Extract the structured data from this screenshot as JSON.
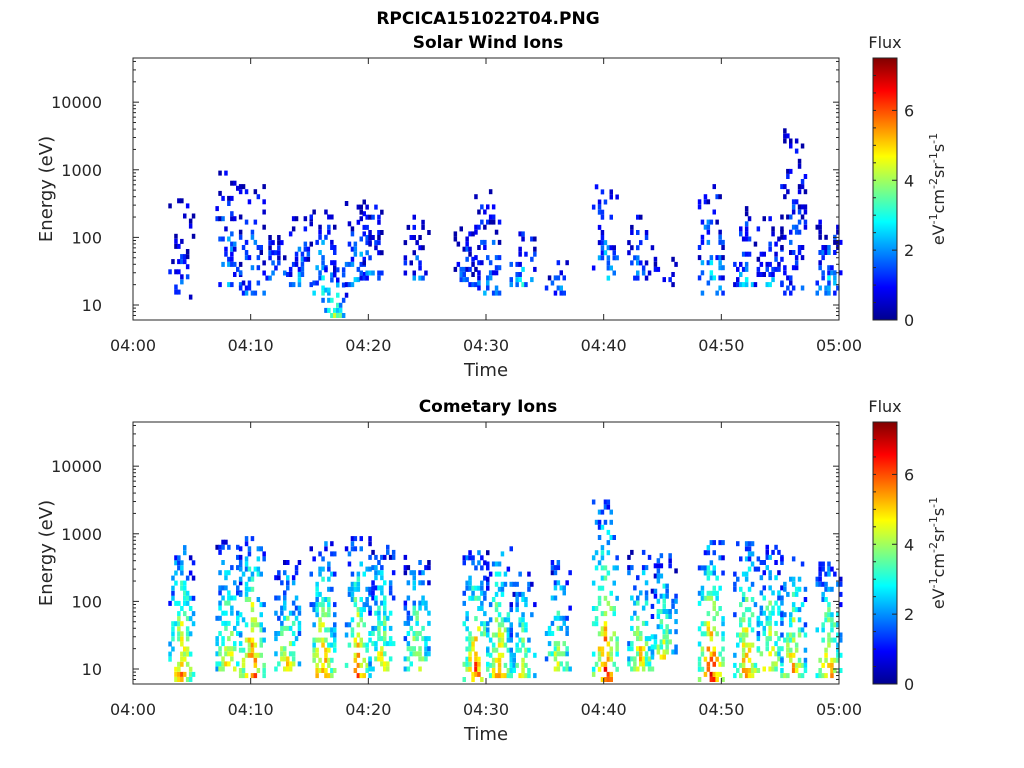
{
  "figure_title": "RPCICA151022T04.PNG",
  "colorbar": {
    "label": "Flux",
    "units": "eV⁻¹cm⁻²sr⁻¹s⁻¹",
    "units_parts": [
      "eV",
      "-1",
      "cm",
      "-2",
      "sr",
      "-1",
      "s",
      "-1"
    ],
    "ticks": [
      "0",
      "2",
      "4",
      "6"
    ],
    "range": [
      0,
      7.5
    ],
    "colormap": "jet"
  },
  "chart_data": [
    {
      "type": "heatmap",
      "title": "Solar Wind Ions",
      "xlabel": "Time",
      "ylabel": "Energy (eV)",
      "x_ticks": [
        "04:00",
        "04:10",
        "04:20",
        "04:30",
        "04:40",
        "04:50",
        "05:00"
      ],
      "y_ticks": [
        "10",
        "100",
        "1000",
        "10000"
      ],
      "y_scale": "log",
      "xlim": [
        "04:00",
        "05:00"
      ],
      "ylim": [
        6,
        45000
      ],
      "value_range": [
        0,
        7.5
      ],
      "bursts": [
        {
          "t": "04:04",
          "lo": 11,
          "hi": 400,
          "level": 1.4,
          "spread": 1
        },
        {
          "t": "04:08",
          "lo": 20,
          "hi": 1000,
          "level": 2.2,
          "spread": 1
        },
        {
          "t": "04:10",
          "lo": 15,
          "hi": 600,
          "level": 2.0,
          "spread": 1
        },
        {
          "t": "04:12",
          "lo": 25,
          "hi": 100,
          "level": 2.2,
          "spread": 1
        },
        {
          "t": "04:14",
          "lo": 20,
          "hi": 200,
          "level": 2.0,
          "spread": 1
        },
        {
          "t": "04:16",
          "lo": 15,
          "hi": 250,
          "level": 2.8,
          "spread": 1
        },
        {
          "t": "04:17",
          "lo": 7,
          "hi": 40,
          "level": 3.8,
          "spread": 0
        },
        {
          "t": "04:19",
          "lo": 20,
          "hi": 350,
          "level": 2.4,
          "spread": 1
        },
        {
          "t": "04:20",
          "lo": 25,
          "hi": 350,
          "level": 1.8,
          "spread": 1
        },
        {
          "t": "04:24",
          "lo": 25,
          "hi": 200,
          "level": 1.6,
          "spread": 1
        },
        {
          "t": "04:28",
          "lo": 20,
          "hi": 250,
          "level": 1.6,
          "spread": 1
        },
        {
          "t": "04:30",
          "lo": 15,
          "hi": 500,
          "level": 2.2,
          "spread": 1
        },
        {
          "t": "04:33",
          "lo": 20,
          "hi": 120,
          "level": 2.4,
          "spread": 1
        },
        {
          "t": "04:36",
          "lo": 15,
          "hi": 50,
          "level": 1.8,
          "spread": 1
        },
        {
          "t": "04:40",
          "lo": 25,
          "hi": 700,
          "level": 2.2,
          "spread": 1
        },
        {
          "t": "04:43",
          "lo": 25,
          "hi": 200,
          "level": 1.8,
          "spread": 1
        },
        {
          "t": "04:45",
          "lo": 20,
          "hi": 50,
          "level": 1.6,
          "spread": 1
        },
        {
          "t": "04:49",
          "lo": 15,
          "hi": 600,
          "level": 2.8,
          "spread": 1
        },
        {
          "t": "04:52",
          "lo": 20,
          "hi": 300,
          "level": 2.2,
          "spread": 1
        },
        {
          "t": "04:54",
          "lo": 20,
          "hi": 200,
          "level": 2.0,
          "spread": 1
        },
        {
          "t": "04:56",
          "lo": 15,
          "hi": 4000,
          "level": 1.6,
          "spread": 1
        },
        {
          "t": "04:59",
          "lo": 15,
          "hi": 200,
          "level": 2.4,
          "spread": 1
        }
      ]
    },
    {
      "type": "heatmap",
      "title": "Cometary Ions",
      "xlabel": "Time",
      "ylabel": "Energy (eV)",
      "x_ticks": [
        "04:00",
        "04:10",
        "04:20",
        "04:30",
        "04:40",
        "04:50",
        "05:00"
      ],
      "y_ticks": [
        "10",
        "100",
        "1000",
        "10000"
      ],
      "y_scale": "log",
      "xlim": [
        "04:00",
        "05:00"
      ],
      "ylim": [
        6,
        45000
      ],
      "value_range": [
        0,
        7.5
      ],
      "bursts": [
        {
          "t": "04:04",
          "lo": 7,
          "hi": 800,
          "level": 5.6,
          "spread": 1
        },
        {
          "t": "04:08",
          "lo": 10,
          "hi": 900,
          "level": 5.0,
          "spread": 1
        },
        {
          "t": "04:10",
          "lo": 8,
          "hi": 1000,
          "level": 6.2,
          "spread": 1
        },
        {
          "t": "04:13",
          "lo": 10,
          "hi": 400,
          "level": 5.0,
          "spread": 1
        },
        {
          "t": "04:16",
          "lo": 8,
          "hi": 800,
          "level": 5.8,
          "spread": 1
        },
        {
          "t": "04:19",
          "lo": 8,
          "hi": 1000,
          "level": 5.6,
          "spread": 1
        },
        {
          "t": "04:21",
          "lo": 10,
          "hi": 700,
          "level": 4.8,
          "spread": 1
        },
        {
          "t": "04:24",
          "lo": 10,
          "hi": 500,
          "level": 4.8,
          "spread": 1
        },
        {
          "t": "04:29",
          "lo": 7,
          "hi": 600,
          "level": 6.2,
          "spread": 1
        },
        {
          "t": "04:31",
          "lo": 8,
          "hi": 800,
          "level": 5.6,
          "spread": 1
        },
        {
          "t": "04:33",
          "lo": 8,
          "hi": 300,
          "level": 4.6,
          "spread": 1
        },
        {
          "t": "04:36",
          "lo": 10,
          "hi": 400,
          "level": 4.6,
          "spread": 1
        },
        {
          "t": "04:40",
          "lo": 7,
          "hi": 3000,
          "level": 6.4,
          "spread": 1
        },
        {
          "t": "04:43",
          "lo": 10,
          "hi": 600,
          "level": 5.2,
          "spread": 1
        },
        {
          "t": "04:45",
          "lo": 15,
          "hi": 500,
          "level": 4.6,
          "spread": 1
        },
        {
          "t": "04:49",
          "lo": 7,
          "hi": 900,
          "level": 6.6,
          "spread": 1
        },
        {
          "t": "04:52",
          "lo": 8,
          "hi": 800,
          "level": 5.8,
          "spread": 1
        },
        {
          "t": "04:54",
          "lo": 10,
          "hi": 700,
          "level": 5.2,
          "spread": 1
        },
        {
          "t": "04:56",
          "lo": 8,
          "hi": 500,
          "level": 5.4,
          "spread": 1
        },
        {
          "t": "04:59",
          "lo": 8,
          "hi": 400,
          "level": 5.6,
          "spread": 1
        }
      ]
    }
  ]
}
